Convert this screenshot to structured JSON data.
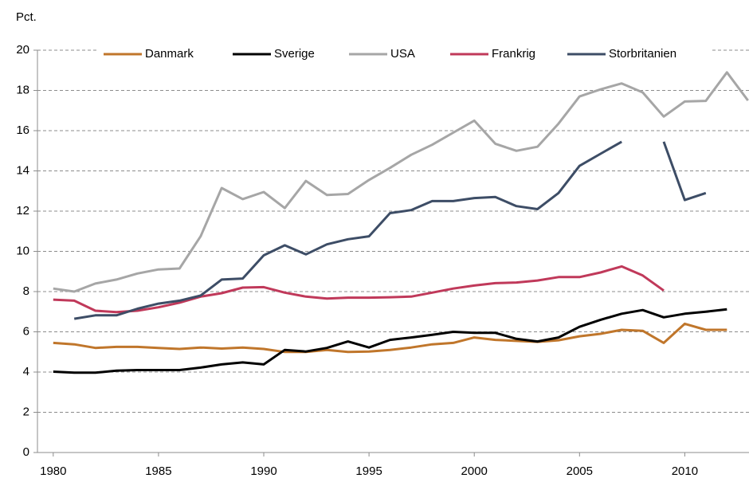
{
  "chart_data": {
    "type": "line",
    "y_label": "Pct.",
    "x": [
      1980,
      1981,
      1982,
      1983,
      1984,
      1985,
      1986,
      1987,
      1988,
      1989,
      1990,
      1991,
      1992,
      1993,
      1994,
      1995,
      1996,
      1997,
      1998,
      1999,
      2000,
      2001,
      2002,
      2003,
      2004,
      2005,
      2006,
      2007,
      2008,
      2009,
      2010,
      2011,
      2012,
      2013
    ],
    "series": [
      {
        "name": "Danmark",
        "color": "#c0762b",
        "values": [
          5.45,
          5.38,
          5.2,
          5.25,
          5.25,
          5.2,
          5.15,
          5.22,
          5.17,
          5.22,
          5.15,
          5.0,
          5.0,
          5.1,
          5.0,
          5.02,
          5.1,
          5.22,
          5.38,
          5.45,
          5.72,
          5.6,
          5.55,
          5.5,
          5.58,
          5.78,
          5.9,
          6.1,
          6.05,
          5.45,
          6.4,
          6.1,
          6.1,
          null
        ]
      },
      {
        "name": "Sverige",
        "color": "#000000",
        "values": [
          4.02,
          3.97,
          3.97,
          4.07,
          4.1,
          4.1,
          4.1,
          4.22,
          4.38,
          4.48,
          4.38,
          5.1,
          5.02,
          5.2,
          5.52,
          5.22,
          5.6,
          5.72,
          5.85,
          6.0,
          5.95,
          5.95,
          5.65,
          5.52,
          5.72,
          6.25,
          6.6,
          6.9,
          7.08,
          6.72,
          6.9,
          7.0,
          7.12,
          null
        ]
      },
      {
        "name": "USA",
        "color": "#a6a6a6",
        "values": [
          8.15,
          8.0,
          8.4,
          8.6,
          8.9,
          9.1,
          9.15,
          10.75,
          13.15,
          12.6,
          12.95,
          12.15,
          13.5,
          12.8,
          12.85,
          13.55,
          14.15,
          14.8,
          15.3,
          15.9,
          16.5,
          15.35,
          15.0,
          15.2,
          16.35,
          17.7,
          18.05,
          18.35,
          17.9,
          16.7,
          17.45,
          17.48,
          18.9,
          17.5
        ]
      },
      {
        "name": "Frankrig",
        "color": "#c0395a",
        "values": [
          7.6,
          7.55,
          7.05,
          6.98,
          7.05,
          7.22,
          7.45,
          7.75,
          7.92,
          8.2,
          8.22,
          7.95,
          7.75,
          7.65,
          7.7,
          7.7,
          7.72,
          7.75,
          7.95,
          8.15,
          8.3,
          8.42,
          8.45,
          8.55,
          8.72,
          8.72,
          8.95,
          9.25,
          8.8,
          8.05,
          null,
          null,
          null,
          null
        ]
      },
      {
        "name": "Storbritanien",
        "color": "#3d4d66",
        "values": [
          null,
          6.65,
          6.82,
          6.82,
          7.15,
          7.4,
          7.55,
          7.8,
          8.6,
          8.65,
          9.8,
          10.3,
          9.85,
          10.35,
          10.6,
          10.75,
          11.9,
          12.05,
          12.5,
          12.5,
          12.65,
          12.7,
          12.25,
          12.1,
          12.9,
          14.25,
          14.85,
          15.45,
          null,
          15.45,
          12.55,
          12.9,
          null,
          null
        ]
      }
    ],
    "xlim": [
      1979.25,
      2013.05
    ],
    "xticks": [
      1980,
      1985,
      1990,
      1995,
      2000,
      2005,
      2010
    ],
    "ylim": [
      0,
      20
    ],
    "yticks": [
      0,
      2,
      4,
      6,
      8,
      10,
      12,
      14,
      16,
      18,
      20
    ],
    "grid": true,
    "legend": "top"
  }
}
